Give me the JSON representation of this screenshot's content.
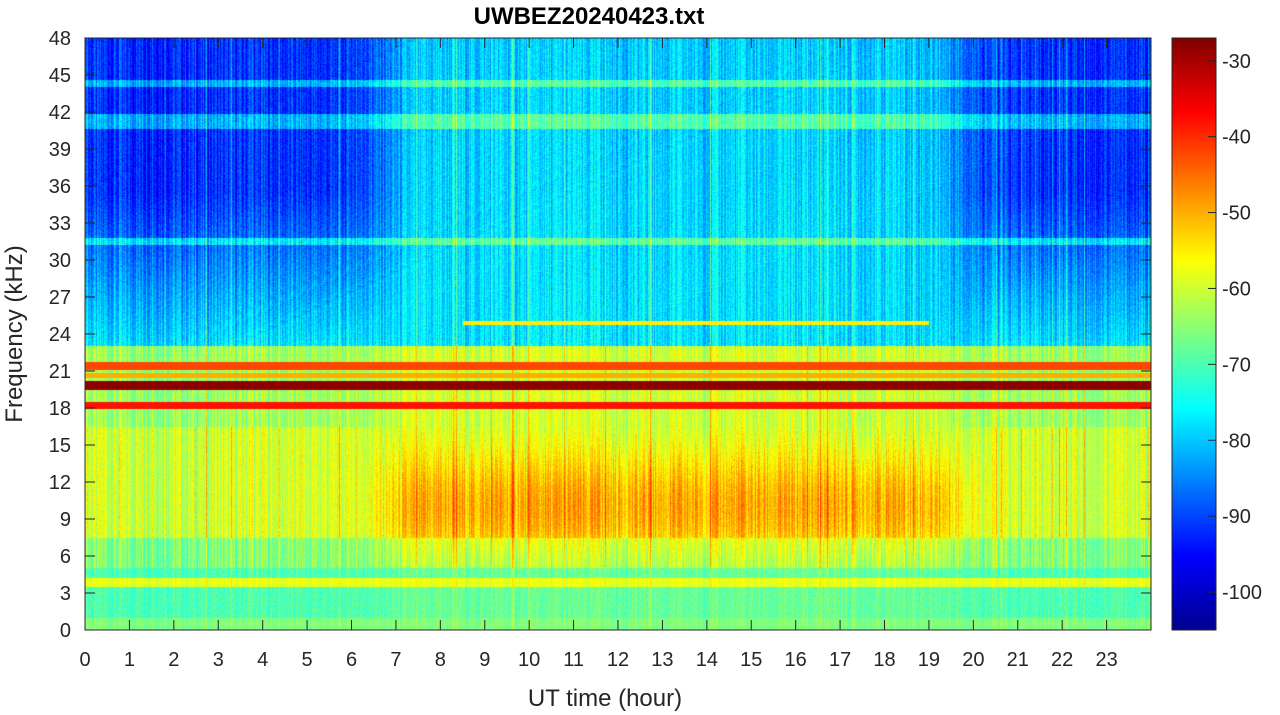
{
  "chart_data": {
    "type": "heatmap",
    "title": "UWBEZ20240423.txt",
    "xlabel": "UT time (hour)",
    "ylabel": "Frequency (kHz)",
    "xlim": [
      0,
      24
    ],
    "ylim": [
      0,
      48
    ],
    "x_ticks": [
      "0",
      "1",
      "2",
      "3",
      "4",
      "5",
      "6",
      "7",
      "8",
      "9",
      "10",
      "11",
      "12",
      "13",
      "14",
      "15",
      "16",
      "17",
      "18",
      "19",
      "20",
      "21",
      "22",
      "23"
    ],
    "y_ticks": [
      "0",
      "3",
      "6",
      "9",
      "12",
      "15",
      "18",
      "21",
      "24",
      "27",
      "30",
      "33",
      "36",
      "39",
      "42",
      "45",
      "48"
    ],
    "colorbar": {
      "colormap": "jet",
      "range": [
        -105,
        -27
      ],
      "ticks": [
        "-30",
        "-40",
        "-50",
        "-60",
        "-70",
        "-80",
        "-90",
        "-100"
      ]
    },
    "grid": false,
    "description_values": {
      "narrowband_lines_khz": [
        19.8,
        18.2,
        21.4,
        3.9
      ],
      "peak_level_db": -28,
      "daytime_broadband_level_db": -52,
      "night_high_freq_level_db": -92
    }
  }
}
